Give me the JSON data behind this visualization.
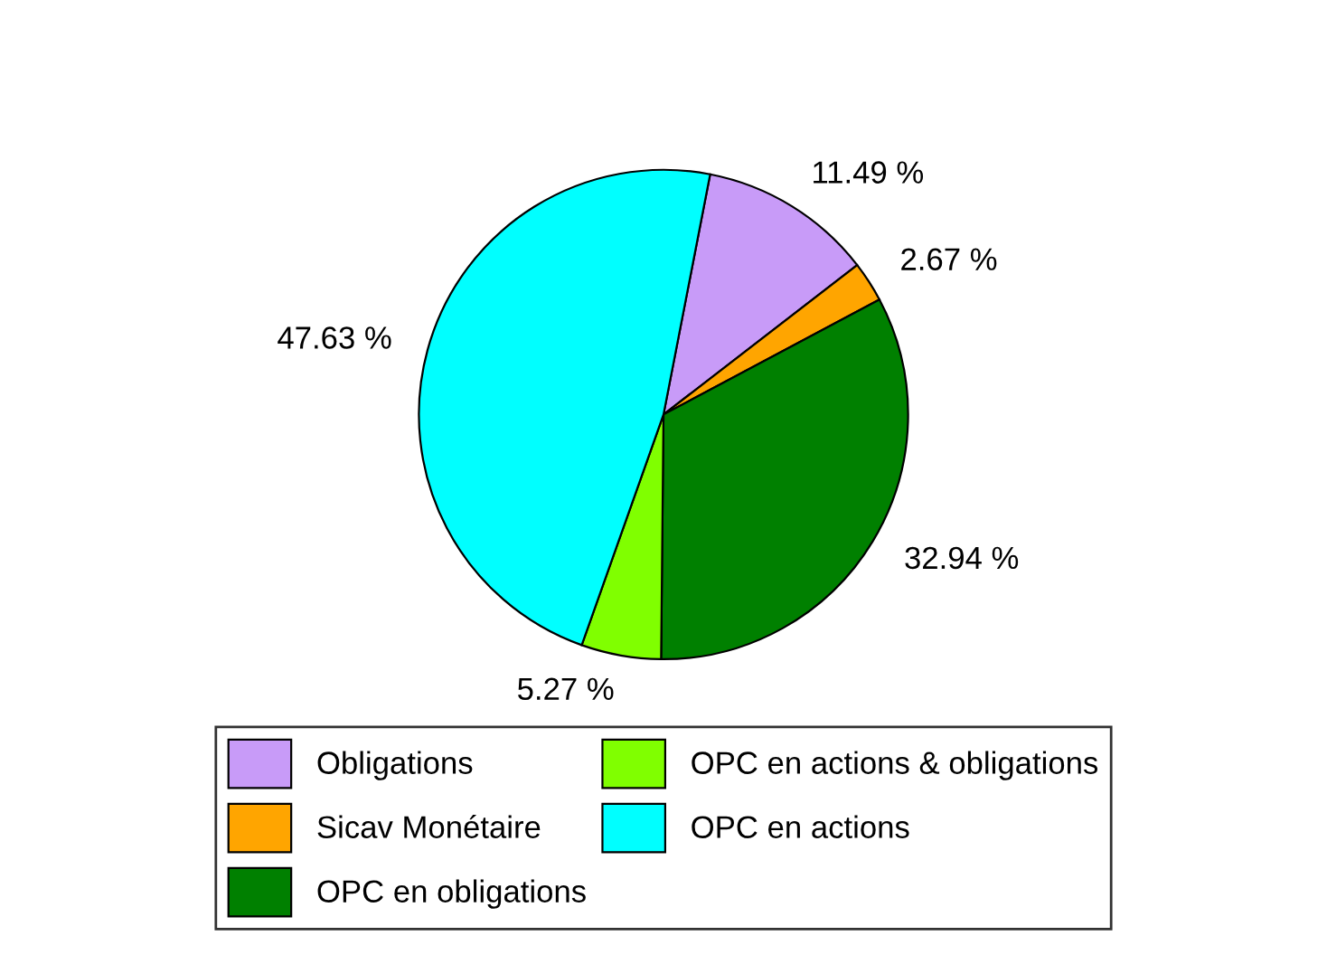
{
  "chart_data": {
    "type": "pie",
    "categories": [
      "Obligations",
      "Sicav Monétaire",
      "OPC en obligations",
      "OPC en actions & obligations",
      "OPC en actions"
    ],
    "values": [
      11.49,
      2.67,
      32.94,
      5.27,
      47.63
    ],
    "colors": [
      "#c89bf8",
      "#ffa500",
      "#008000",
      "#80ff00",
      "#00ffff"
    ],
    "value_labels": [
      "11.49 %",
      "2.67 %",
      "32.94 %",
      "5.27 %",
      "47.63 %"
    ],
    "legend": "bottom"
  }
}
